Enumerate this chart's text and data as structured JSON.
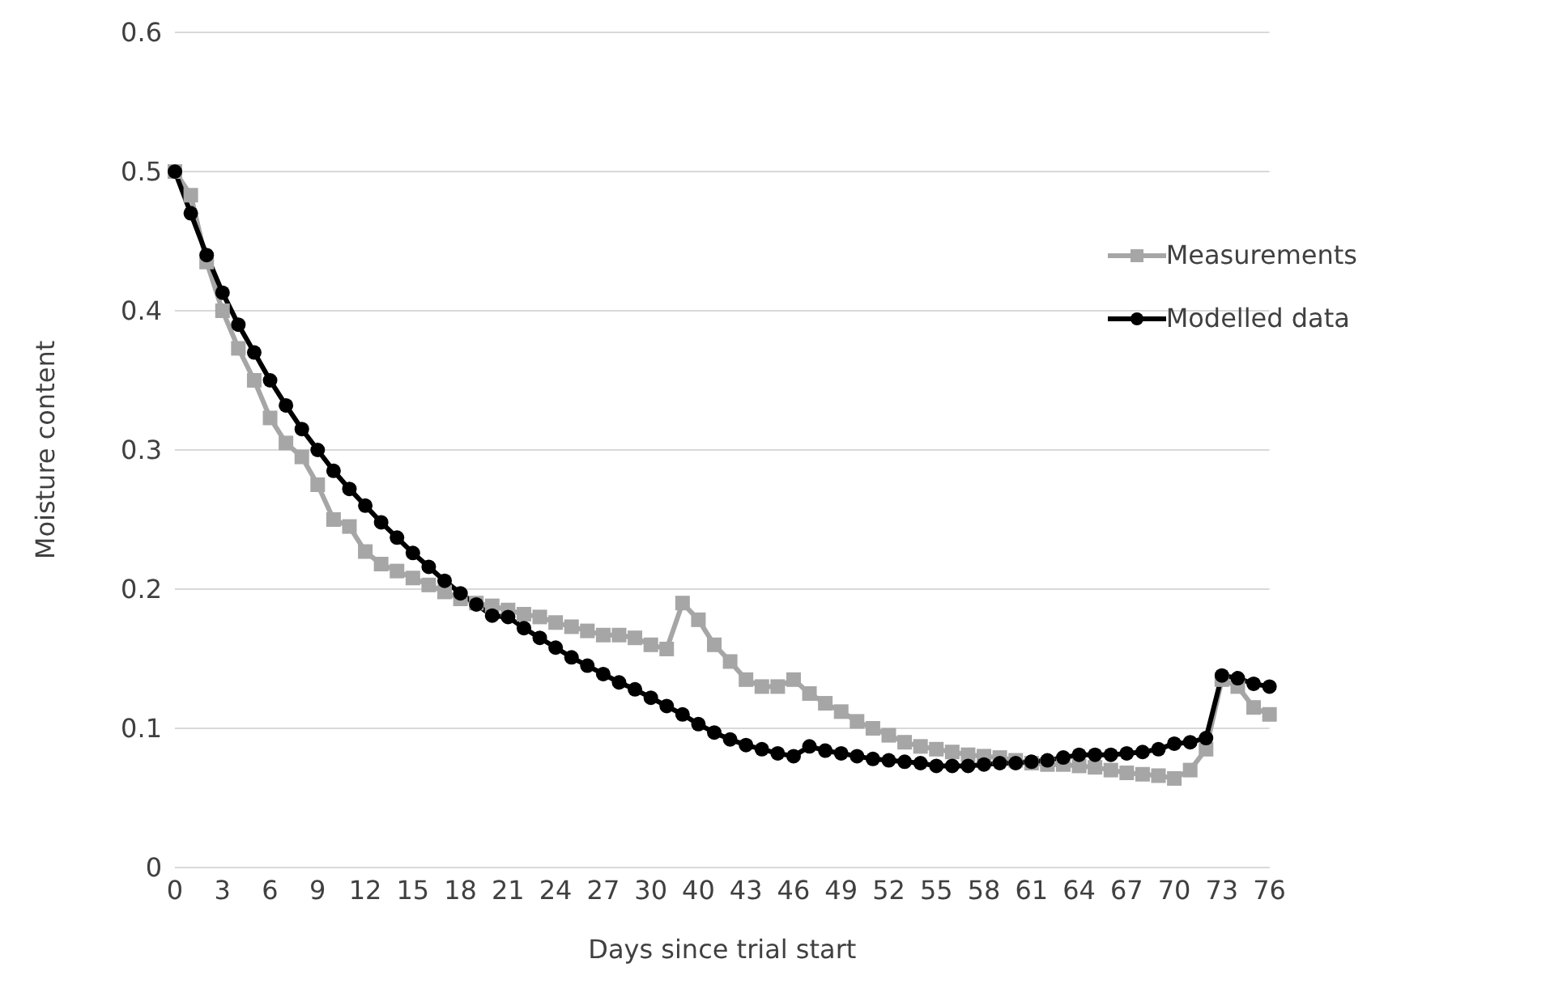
{
  "chart_data": {
    "type": "line",
    "xlabel": "Days since trial start",
    "ylabel": "Moisture content",
    "categories": [
      "0",
      null,
      null,
      "3",
      null,
      null,
      "6",
      null,
      null,
      "9",
      null,
      null,
      "12",
      null,
      null,
      "15",
      null,
      null,
      "18",
      null,
      null,
      "21",
      null,
      null,
      "24",
      null,
      null,
      "27",
      null,
      null,
      "30",
      null,
      null,
      "40",
      null,
      null,
      "43",
      null,
      null,
      "46",
      null,
      null,
      "49",
      null,
      null,
      "52",
      null,
      null,
      "55",
      null,
      null,
      "58",
      null,
      null,
      "61",
      null,
      null,
      "64",
      null,
      null,
      "67",
      null,
      null,
      "70",
      null,
      null,
      "73",
      null,
      null,
      "76"
    ],
    "series": [
      {
        "name": "Measurements",
        "color": "#a6a6a6",
        "marker": "square",
        "values": [
          0.5,
          0.483,
          0.435,
          0.4,
          0.373,
          0.35,
          0.323,
          0.305,
          0.295,
          0.275,
          0.25,
          0.245,
          0.227,
          0.218,
          0.213,
          0.208,
          0.203,
          0.198,
          0.193,
          0.19,
          0.188,
          0.185,
          0.182,
          0.18,
          0.176,
          0.173,
          0.17,
          0.167,
          0.167,
          0.165,
          0.16,
          0.157,
          0.19,
          0.178,
          0.16,
          0.148,
          0.135,
          0.13,
          0.13,
          0.135,
          0.125,
          0.118,
          0.112,
          0.105,
          0.1,
          0.095,
          0.09,
          0.087,
          0.085,
          0.083,
          0.081,
          0.08,
          0.079,
          0.077,
          0.075,
          0.074,
          0.074,
          0.073,
          0.072,
          0.07,
          0.068,
          0.067,
          0.066,
          0.064,
          0.07,
          0.085,
          0.135,
          0.13,
          0.115,
          0.11
        ]
      },
      {
        "name": "Modelled data",
        "color": "#000000",
        "marker": "circle",
        "values": [
          0.5,
          0.47,
          0.44,
          0.413,
          0.39,
          0.37,
          0.35,
          0.332,
          0.315,
          0.3,
          0.285,
          0.272,
          0.26,
          0.248,
          0.237,
          0.226,
          0.216,
          0.206,
          0.197,
          0.189,
          0.181,
          0.18,
          0.172,
          0.165,
          0.158,
          0.151,
          0.145,
          0.139,
          0.133,
          0.128,
          0.122,
          0.116,
          0.11,
          0.103,
          0.097,
          0.092,
          0.088,
          0.085,
          0.082,
          0.08,
          0.087,
          0.084,
          0.082,
          0.08,
          0.078,
          0.077,
          0.076,
          0.075,
          0.073,
          0.073,
          0.073,
          0.074,
          0.075,
          0.075,
          0.076,
          0.077,
          0.079,
          0.081,
          0.081,
          0.081,
          0.082,
          0.083,
          0.085,
          0.089,
          0.09,
          0.093,
          0.138,
          0.136,
          0.132,
          0.13
        ]
      }
    ],
    "ylim": [
      0,
      0.6
    ],
    "yticks": [
      0,
      0.1,
      0.2,
      0.3,
      0.4,
      0.5,
      0.6
    ],
    "grid": "y",
    "legend": "right"
  }
}
